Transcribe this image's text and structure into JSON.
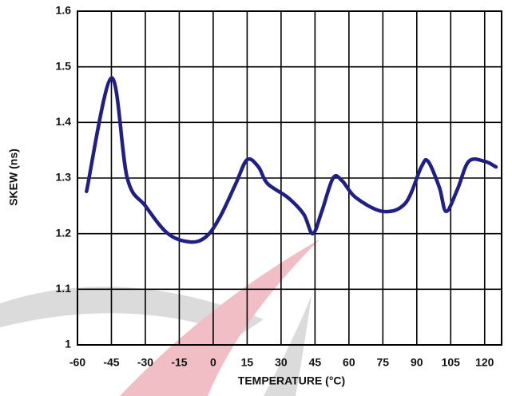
{
  "chart_data": {
    "type": "line",
    "xlabel": "TEMPERATURE (°C)",
    "ylabel": "SKEW (ns)",
    "x": [
      -56,
      -45,
      -38,
      -30,
      -20,
      -10,
      -3,
      3,
      10,
      15,
      20,
      24,
      33,
      40,
      44,
      48,
      53,
      57,
      63,
      75,
      85,
      92,
      95,
      100,
      103,
      108,
      113,
      120,
      125
    ],
    "series": [
      {
        "name": "SKEW",
        "color": "#1f1f87",
        "values": [
          1.276,
          1.48,
          1.3,
          1.25,
          1.2,
          1.185,
          1.195,
          1.23,
          1.29,
          1.333,
          1.32,
          1.29,
          1.265,
          1.235,
          1.2,
          1.24,
          1.3,
          1.295,
          1.265,
          1.24,
          1.255,
          1.32,
          1.33,
          1.283,
          1.24,
          1.28,
          1.33,
          1.33,
          1.32
        ]
      }
    ],
    "xlim": [
      -60,
      127.5
    ],
    "xticks": [
      -60,
      -45,
      -30,
      -15,
      0,
      15,
      30,
      45,
      60,
      75,
      90,
      105,
      120
    ],
    "ylim": [
      1,
      1.6
    ],
    "yticks": [
      1,
      1.1,
      1.2,
      1.3,
      1.4,
      1.5,
      1.6
    ],
    "grid": true
  }
}
